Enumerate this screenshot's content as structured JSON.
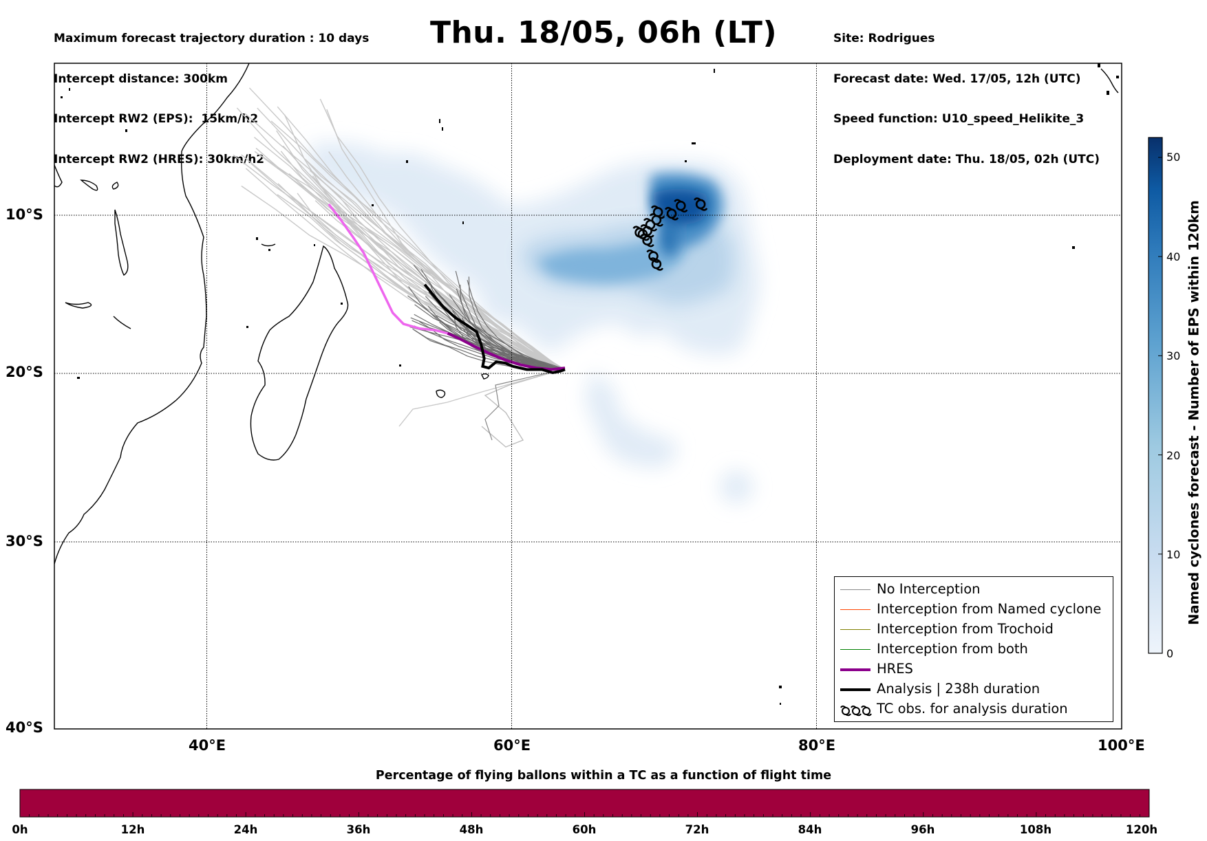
{
  "header_left": [
    "Maximum forecast trajectory duration : 10 days",
    "Intercept distance: 300km",
    "Intercept RW2 (EPS):  15km/h2",
    "Intercept RW2 (HRES): 30km/h2"
  ],
  "title": "Thu. 18/05, 06h (LT)",
  "header_right": [
    "Site: Rodrigues",
    "Forecast date: Wed. 17/05, 12h (UTC)",
    "Speed function: U10_speed_Helikite_3",
    "Deployment date: Thu. 18/05, 02h (UTC)"
  ],
  "map": {
    "lon_range": [
      30,
      100
    ],
    "lat_range": [
      -40,
      -0.8
    ],
    "lat_labels": [
      "10°S",
      "20°S",
      "30°S",
      "40°S"
    ],
    "lon_labels": [
      "40°E",
      "60°E",
      "80°E",
      "100°E"
    ],
    "gridlines": "dotted",
    "tc_observations": [
      [
        72.4,
        -9.3
      ],
      [
        71.1,
        -9.4
      ],
      [
        70.5,
        -9.9
      ],
      [
        69.6,
        -9.8
      ],
      [
        69.5,
        -10.3
      ],
      [
        69.1,
        -10.6
      ],
      [
        68.9,
        -11.0
      ],
      [
        68.6,
        -11.2
      ],
      [
        68.4,
        -11.1
      ],
      [
        68.9,
        -11.6
      ],
      [
        69.3,
        -12.6
      ],
      [
        69.5,
        -13.1
      ]
    ],
    "hres_track": [
      [
        48.0,
        -9.3
      ],
      [
        48.8,
        -10.3
      ],
      [
        49.6,
        -11.4
      ],
      [
        50.3,
        -12.4
      ],
      [
        51.0,
        -13.8
      ],
      [
        51.6,
        -15.0
      ],
      [
        52.2,
        -16.2
      ],
      [
        52.9,
        -16.9
      ],
      [
        54.0,
        -17.2
      ],
      [
        55.0,
        -17.3
      ],
      [
        55.8,
        -17.5
      ],
      [
        56.5,
        -17.8
      ],
      [
        57.5,
        -18.3
      ],
      [
        58.6,
        -18.8
      ],
      [
        59.6,
        -19.2
      ],
      [
        60.6,
        -19.5
      ],
      [
        61.6,
        -19.7
      ],
      [
        62.6,
        -19.8
      ],
      [
        63.5,
        -19.7
      ]
    ],
    "analysis_track": [
      [
        54.3,
        -14.4
      ],
      [
        54.8,
        -15.0
      ],
      [
        55.5,
        -15.8
      ],
      [
        56.3,
        -16.5
      ],
      [
        57.1,
        -17.0
      ],
      [
        57.7,
        -17.4
      ],
      [
        58.0,
        -18.2
      ],
      [
        58.2,
        -19.1
      ],
      [
        58.1,
        -19.6
      ],
      [
        58.5,
        -19.7
      ],
      [
        59.0,
        -19.3
      ],
      [
        59.6,
        -19.4
      ],
      [
        60.1,
        -19.6
      ],
      [
        61.0,
        -19.8
      ],
      [
        62.0,
        -19.8
      ],
      [
        62.7,
        -20.0
      ],
      [
        63.2,
        -19.9
      ],
      [
        63.5,
        -19.8
      ]
    ]
  },
  "colorbar": {
    "label": "Named cyclones forecast - Number of EPS within 120km",
    "ticks": [
      "0",
      "10",
      "20",
      "30",
      "40",
      "50"
    ],
    "range": [
      0,
      52
    ],
    "colors": [
      "#e6eff9",
      "#c6dbef",
      "#9ecae1",
      "#6baed6",
      "#3182bd",
      "#08519c",
      "#08306b"
    ]
  },
  "legend": [
    {
      "label": "No Interception",
      "color": "#888888",
      "width": 1.2
    },
    {
      "label": "Interception from Named cyclone",
      "color": "#ff4500",
      "width": 1.2
    },
    {
      "label": "Interception from Trochoid",
      "color": "#808000",
      "width": 1.2
    },
    {
      "label": "Interception from both",
      "color": "#008000",
      "width": 1.2
    },
    {
      "label": "HRES",
      "color": "#8b008b",
      "width": 4
    },
    {
      "label": "Analysis | 238h duration",
      "color": "#000000",
      "width": 4
    },
    {
      "label": "TC obs. for analysis duration",
      "color": "#000000",
      "width": 0,
      "icon": "cyclone-symbols"
    }
  ],
  "bottom_bar": {
    "title": "Percentage of flying ballons within a TC as a function of flight time",
    "color": "#a0003c",
    "ticks": [
      "0h",
      "12h",
      "24h",
      "36h",
      "48h",
      "60h",
      "72h",
      "84h",
      "96h",
      "108h",
      "120h"
    ]
  }
}
